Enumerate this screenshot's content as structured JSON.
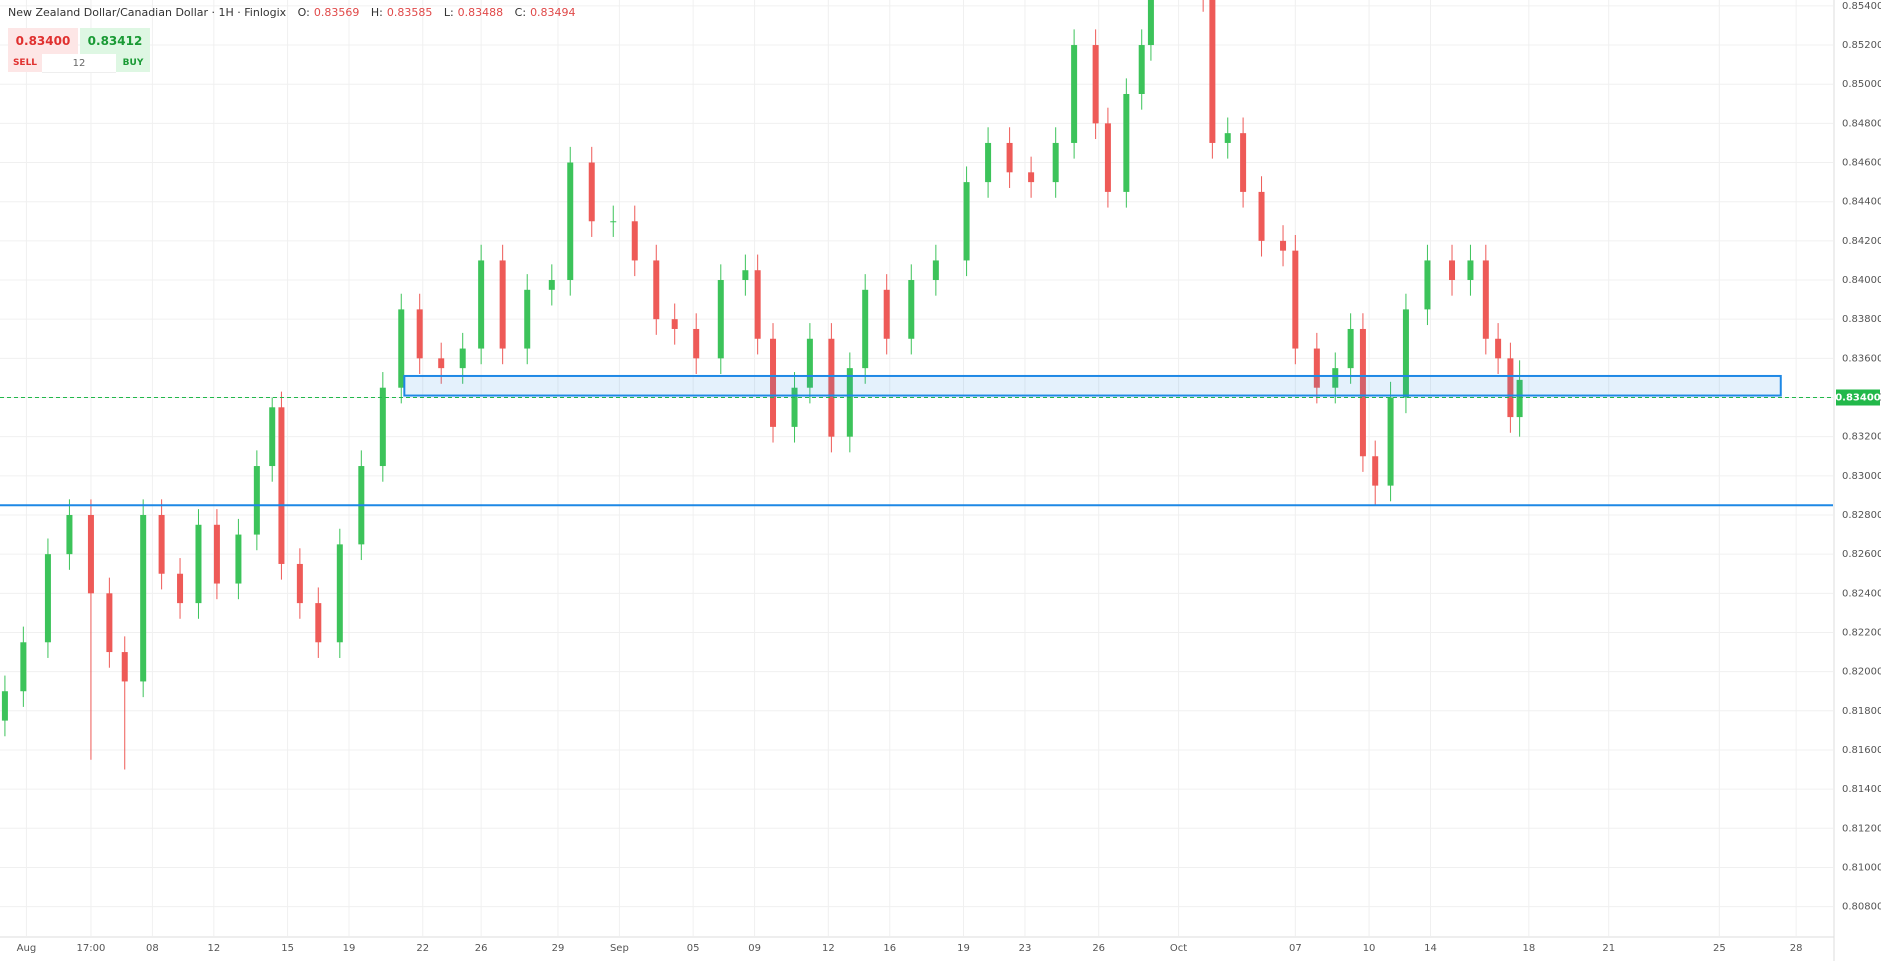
{
  "header": {
    "title": "New Zealand Dollar/Canadian Dollar · 1H · Finlogix",
    "ohlc": [
      {
        "key": "O:",
        "value": "0.83569"
      },
      {
        "key": "H:",
        "value": "0.83585"
      },
      {
        "key": "L:",
        "value": "0.83488"
      },
      {
        "key": "C:",
        "value": "0.83494"
      }
    ]
  },
  "trade": {
    "sell_price": "0.83400",
    "buy_price": "0.83412",
    "sell": "SELL",
    "buy": "BUY",
    "quantity": "12"
  },
  "chart_data": {
    "type": "candlestick",
    "x": [
      -0.7,
      -0.1,
      0.7,
      1.4,
      2.1,
      2.7,
      3.2,
      3.8,
      4.4,
      5.0,
      5.6,
      6.2,
      6.9,
      7.5,
      8.0,
      8.3,
      8.9,
      9.5,
      10.2,
      10.9,
      11.6,
      12.2,
      12.8,
      13.5,
      14.2,
      14.8,
      15.5,
      16.3,
      17.1,
      17.7,
      18.4,
      19.1,
      19.8,
      20.5,
      21.1,
      21.8,
      22.6,
      23.4,
      23.8,
      24.3,
      25.0,
      25.5,
      26.2,
      26.8,
      27.3,
      28.0,
      28.8,
      29.6,
      30.6,
      31.3,
      32.0,
      32.7,
      33.5,
      34.1,
      34.8,
      35.2,
      35.8,
      36.3,
      36.6,
      38.3,
      38.6,
      39.1,
      39.6,
      40.2,
      40.9,
      41.3,
      42.0,
      42.6,
      43.1,
      43.5,
      43.9,
      44.4,
      44.9,
      45.6,
      46.4,
      47.0,
      47.5,
      47.9,
      48.3,
      48.6
    ],
    "open": [
      0.8175,
      0.819,
      0.8215,
      0.826,
      0.828,
      0.824,
      0.821,
      0.8195,
      0.828,
      0.825,
      0.8235,
      0.8275,
      0.8245,
      0.827,
      0.8305,
      0.8335,
      0.8255,
      0.8235,
      0.8215,
      0.8265,
      0.8305,
      0.8345,
      0.8385,
      0.836,
      0.8355,
      0.8365,
      0.841,
      0.8365,
      0.8395,
      0.84,
      0.846,
      0.843,
      0.843,
      0.841,
      0.838,
      0.8375,
      0.836,
      0.84,
      0.8405,
      0.837,
      0.8325,
      0.8345,
      0.837,
      0.832,
      0.8355,
      0.8395,
      0.837,
      0.84,
      0.841,
      0.845,
      0.847,
      0.8455,
      0.845,
      0.847,
      0.852,
      0.848,
      0.8445,
      0.8495,
      0.852,
      0.856,
      0.8545,
      0.847,
      0.8475,
      0.8445,
      0.842,
      0.8415,
      0.8365,
      0.8345,
      0.8355,
      0.8375,
      0.831,
      0.8295,
      0.834,
      0.8385,
      0.841,
      0.84,
      0.841,
      0.837,
      0.836,
      0.833
    ],
    "high": [
      0.8198,
      0.8223,
      0.8268,
      0.8288,
      0.8288,
      0.8248,
      0.8218,
      0.8288,
      0.8288,
      0.8258,
      0.8283,
      0.8283,
      0.8278,
      0.8313,
      0.834,
      0.8343,
      0.8263,
      0.8243,
      0.8273,
      0.8313,
      0.8353,
      0.8393,
      0.8393,
      0.8368,
      0.8373,
      0.8418,
      0.8418,
      0.8403,
      0.8408,
      0.8468,
      0.8468,
      0.8438,
      0.8438,
      0.8418,
      0.8388,
      0.8383,
      0.8408,
      0.8413,
      0.8413,
      0.8378,
      0.8353,
      0.8378,
      0.8378,
      0.8363,
      0.8403,
      0.8403,
      0.8408,
      0.8418,
      0.8458,
      0.8478,
      0.8478,
      0.8463,
      0.8478,
      0.8528,
      0.8528,
      0.8488,
      0.8503,
      0.8528,
      0.8568,
      0.8568,
      0.8553,
      0.8483,
      0.8483,
      0.8453,
      0.8428,
      0.8423,
      0.8373,
      0.8363,
      0.8383,
      0.8383,
      0.8318,
      0.8348,
      0.8393,
      0.8418,
      0.8418,
      0.8418,
      0.8418,
      0.8378,
      0.8368,
      0.8359
    ],
    "low": [
      0.8167,
      0.8182,
      0.8207,
      0.8252,
      0.8155,
      0.8202,
      0.815,
      0.8187,
      0.8242,
      0.8227,
      0.8227,
      0.8237,
      0.8237,
      0.8262,
      0.8297,
      0.8247,
      0.8227,
      0.8207,
      0.8207,
      0.8257,
      0.8297,
      0.8337,
      0.8352,
      0.8347,
      0.8347,
      0.8357,
      0.8357,
      0.8357,
      0.8387,
      0.8392,
      0.8422,
      0.8422,
      0.8402,
      0.8372,
      0.8367,
      0.8352,
      0.8352,
      0.8392,
      0.8362,
      0.8317,
      0.8317,
      0.8337,
      0.8312,
      0.8312,
      0.8347,
      0.8362,
      0.8362,
      0.8392,
      0.8402,
      0.8442,
      0.8447,
      0.8442,
      0.8442,
      0.8462,
      0.8472,
      0.8437,
      0.8437,
      0.8487,
      0.8512,
      0.8537,
      0.8462,
      0.8462,
      0.8437,
      0.8412,
      0.8407,
      0.8357,
      0.8337,
      0.8337,
      0.8347,
      0.8302,
      0.8285,
      0.8287,
      0.8332,
      0.8377,
      0.8392,
      0.8392,
      0.8362,
      0.8352,
      0.8322,
      0.832
    ],
    "close": [
      0.819,
      0.8215,
      0.826,
      0.828,
      0.824,
      0.821,
      0.8195,
      0.828,
      0.825,
      0.8235,
      0.8275,
      0.8245,
      0.827,
      0.8305,
      0.8335,
      0.8255,
      0.8235,
      0.8215,
      0.8265,
      0.8305,
      0.8345,
      0.8385,
      0.836,
      0.8355,
      0.8365,
      0.841,
      0.8365,
      0.8395,
      0.84,
      0.846,
      0.843,
      0.843,
      0.841,
      0.838,
      0.8375,
      0.836,
      0.84,
      0.8405,
      0.837,
      0.8325,
      0.8345,
      0.837,
      0.832,
      0.8355,
      0.8395,
      0.837,
      0.84,
      0.841,
      0.845,
      0.847,
      0.8455,
      0.845,
      0.847,
      0.852,
      0.848,
      0.8445,
      0.8495,
      0.852,
      0.856,
      0.8545,
      0.847,
      0.8475,
      0.8445,
      0.842,
      0.8415,
      0.8365,
      0.8345,
      0.8355,
      0.8375,
      0.831,
      0.8295,
      0.834,
      0.8385,
      0.841,
      0.84,
      0.841,
      0.837,
      0.836,
      0.833,
      0.8349
    ],
    "up_color": "#3cc35a",
    "down_color": "#ee5a57",
    "xlim": [
      -0.86,
      58.8
    ],
    "ylim": [
      0.8065,
      0.8543
    ],
    "grid": true,
    "xticks": [
      {
        "value": 0,
        "label": "Aug"
      },
      {
        "value": 2.1,
        "label": "17:00"
      },
      {
        "value": 4.1,
        "label": "08"
      },
      {
        "value": 6.1,
        "label": "12"
      },
      {
        "value": 8.5,
        "label": "15"
      },
      {
        "value": 10.5,
        "label": "19"
      },
      {
        "value": 12.9,
        "label": "22"
      },
      {
        "value": 14.8,
        "label": "26"
      },
      {
        "value": 17.3,
        "label": "29"
      },
      {
        "value": 19.3,
        "label": "Sep"
      },
      {
        "value": 21.7,
        "label": "05"
      },
      {
        "value": 23.7,
        "label": "09"
      },
      {
        "value": 26.1,
        "label": "12"
      },
      {
        "value": 28.1,
        "label": "16"
      },
      {
        "value": 30.5,
        "label": "19"
      },
      {
        "value": 32.5,
        "label": "23"
      },
      {
        "value": 34.9,
        "label": "26"
      },
      {
        "value": 37.5,
        "label": "Oct"
      },
      {
        "value": 41.3,
        "label": "07"
      },
      {
        "value": 43.7,
        "label": "10"
      },
      {
        "value": 45.7,
        "label": "14"
      },
      {
        "value": 48.9,
        "label": "18"
      },
      {
        "value": 51.5,
        "label": "21"
      },
      {
        "value": 55.1,
        "label": "25"
      },
      {
        "value": 57.6,
        "label": "28"
      }
    ],
    "yticks": [
      {
        "value": 0.854,
        "label": "0.85400"
      },
      {
        "value": 0.852,
        "label": "0.85200"
      },
      {
        "value": 0.85,
        "label": "0.85000"
      },
      {
        "value": 0.848,
        "label": "0.84800"
      },
      {
        "value": 0.846,
        "label": "0.84600"
      },
      {
        "value": 0.844,
        "label": "0.84400"
      },
      {
        "value": 0.842,
        "label": "0.84200"
      },
      {
        "value": 0.84,
        "label": "0.84000"
      },
      {
        "value": 0.838,
        "label": "0.83800"
      },
      {
        "value": 0.836,
        "label": "0.83600"
      },
      {
        "value": 0.834,
        "label": "0.83400"
      },
      {
        "value": 0.832,
        "label": "0.83200"
      },
      {
        "value": 0.83,
        "label": "0.83000"
      },
      {
        "value": 0.828,
        "label": "0.82800"
      },
      {
        "value": 0.826,
        "label": "0.82600"
      },
      {
        "value": 0.824,
        "label": "0.82400"
      },
      {
        "value": 0.822,
        "label": "0.82200"
      },
      {
        "value": 0.82,
        "label": "0.82000"
      },
      {
        "value": 0.818,
        "label": "0.81800"
      },
      {
        "value": 0.816,
        "label": "0.81600"
      },
      {
        "value": 0.814,
        "label": "0.81400"
      },
      {
        "value": 0.812,
        "label": "0.81200"
      },
      {
        "value": 0.81,
        "label": "0.81000"
      },
      {
        "value": 0.808,
        "label": "0.80800"
      }
    ],
    "last_price": {
      "value": 0.834,
      "label": "0.83400"
    },
    "last_price_color": "#22b84a",
    "support_line": 0.8285,
    "zone": {
      "x": [
        12.3,
        57.1
      ],
      "y": [
        0.8341,
        0.8351
      ]
    },
    "drawing_color": "#1e88e5"
  }
}
